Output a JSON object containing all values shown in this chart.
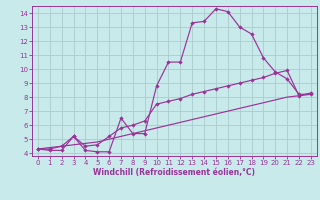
{
  "background_color": "#c8eaea",
  "grid_color": "#aacccc",
  "line_color": "#993399",
  "xlabel": "Windchill (Refroidissement éolien,°C)",
  "xlim": [
    -0.5,
    23.5
  ],
  "ylim": [
    3.8,
    14.5
  ],
  "xticks": [
    0,
    1,
    2,
    3,
    4,
    5,
    6,
    7,
    8,
    9,
    10,
    11,
    12,
    13,
    14,
    15,
    16,
    17,
    18,
    19,
    20,
    21,
    22,
    23
  ],
  "yticks": [
    4,
    5,
    6,
    7,
    8,
    9,
    10,
    11,
    12,
    13,
    14
  ],
  "line1_x": [
    0,
    1,
    2,
    3,
    4,
    5,
    6,
    7,
    8,
    9,
    10,
    11,
    12,
    13,
    14,
    15,
    16,
    17,
    18,
    19,
    20,
    21,
    22,
    23
  ],
  "line1_y": [
    4.3,
    4.2,
    4.2,
    5.2,
    4.2,
    4.1,
    4.1,
    6.5,
    5.4,
    5.4,
    8.8,
    10.5,
    10.5,
    13.3,
    13.4,
    14.3,
    14.1,
    13.0,
    12.5,
    10.8,
    9.8,
    9.3,
    8.2,
    8.2
  ],
  "line2_x": [
    0,
    1,
    2,
    3,
    4,
    5,
    6,
    7,
    8,
    9,
    10,
    11,
    12,
    13,
    14,
    15,
    16,
    17,
    18,
    19,
    20,
    21,
    22,
    23
  ],
  "line2_y": [
    4.3,
    4.3,
    4.5,
    5.2,
    4.5,
    4.6,
    5.2,
    5.8,
    6.0,
    6.3,
    7.5,
    7.7,
    7.9,
    8.2,
    8.4,
    8.6,
    8.8,
    9.0,
    9.2,
    9.4,
    9.7,
    9.9,
    8.1,
    8.3
  ],
  "line3_x": [
    0,
    1,
    2,
    3,
    4,
    5,
    6,
    7,
    8,
    9,
    10,
    11,
    12,
    13,
    14,
    15,
    16,
    17,
    18,
    19,
    20,
    21,
    22,
    23
  ],
  "line3_y": [
    4.3,
    4.4,
    4.5,
    4.6,
    4.7,
    4.8,
    5.0,
    5.2,
    5.4,
    5.6,
    5.8,
    6.0,
    6.2,
    6.4,
    6.6,
    6.8,
    7.0,
    7.2,
    7.4,
    7.6,
    7.8,
    8.0,
    8.1,
    8.2
  ],
  "title_fontsize": 6,
  "tick_fontsize": 5,
  "xlabel_fontsize": 5.5
}
